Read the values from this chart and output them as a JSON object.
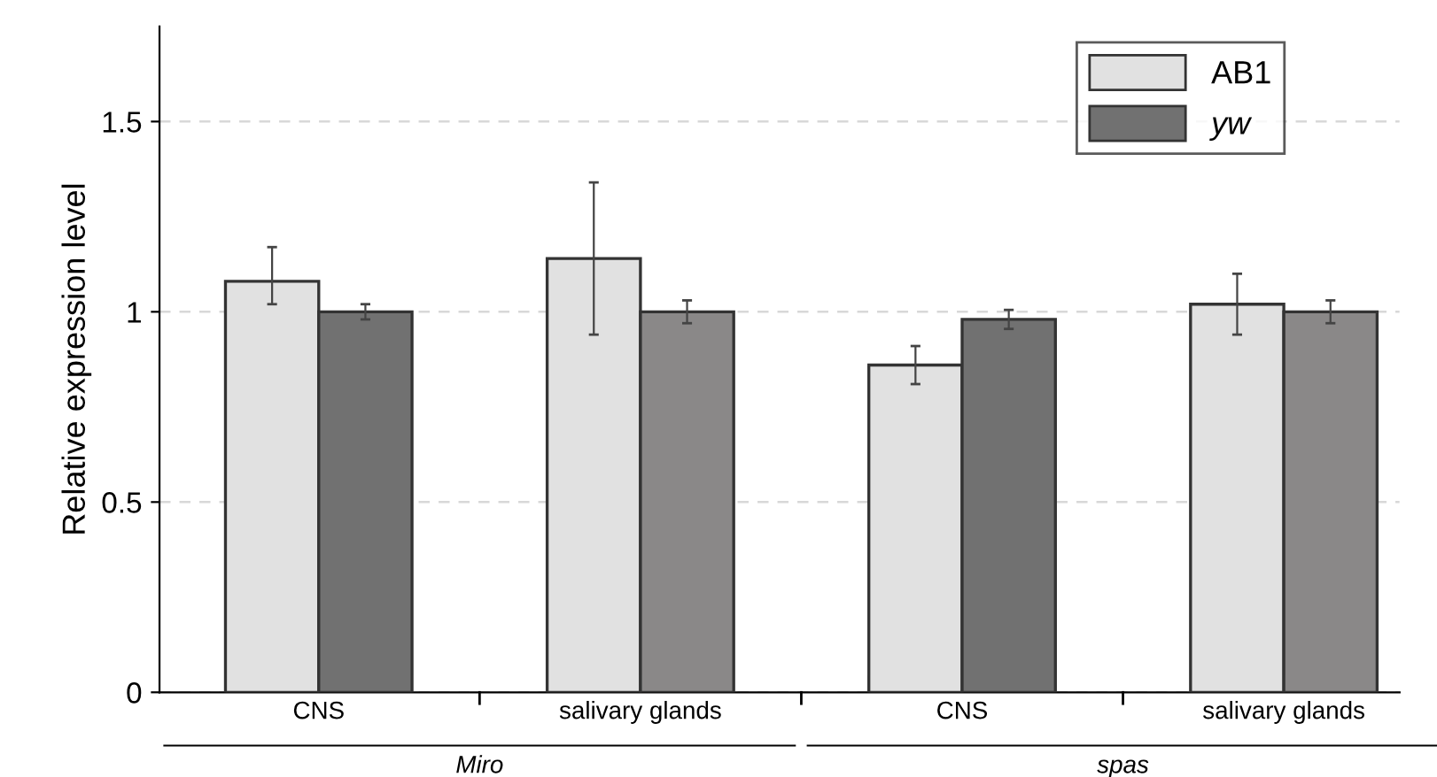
{
  "chart_data": {
    "type": "bar",
    "ylabel": "Relative expression level",
    "categories": [
      "CNS",
      "salivary glands",
      "CNS",
      "salivary glands"
    ],
    "series": [
      {
        "name": "AB1",
        "color": "#e1e1e1",
        "values": [
          1.08,
          1.14,
          0.86,
          1.02
        ],
        "errors": [
          [
            1.02,
            1.17
          ],
          0.2,
          0.05,
          0.08
        ]
      },
      {
        "name": "yw",
        "color": "#717171",
        "colors": [
          "#717171",
          "#8a8888",
          "#717171",
          "#8a8888"
        ],
        "values": [
          1.0,
          1.0,
          0.98,
          1.0
        ],
        "errors": [
          0.02,
          0.03,
          0.025,
          0.03
        ]
      }
    ],
    "ylim": [
      0,
      1.75
    ],
    "yticks": [
      0,
      0.5,
      1,
      1.5
    ],
    "grid": "y",
    "legend": "top right",
    "annotations": [
      "Miro",
      "spas"
    ]
  }
}
